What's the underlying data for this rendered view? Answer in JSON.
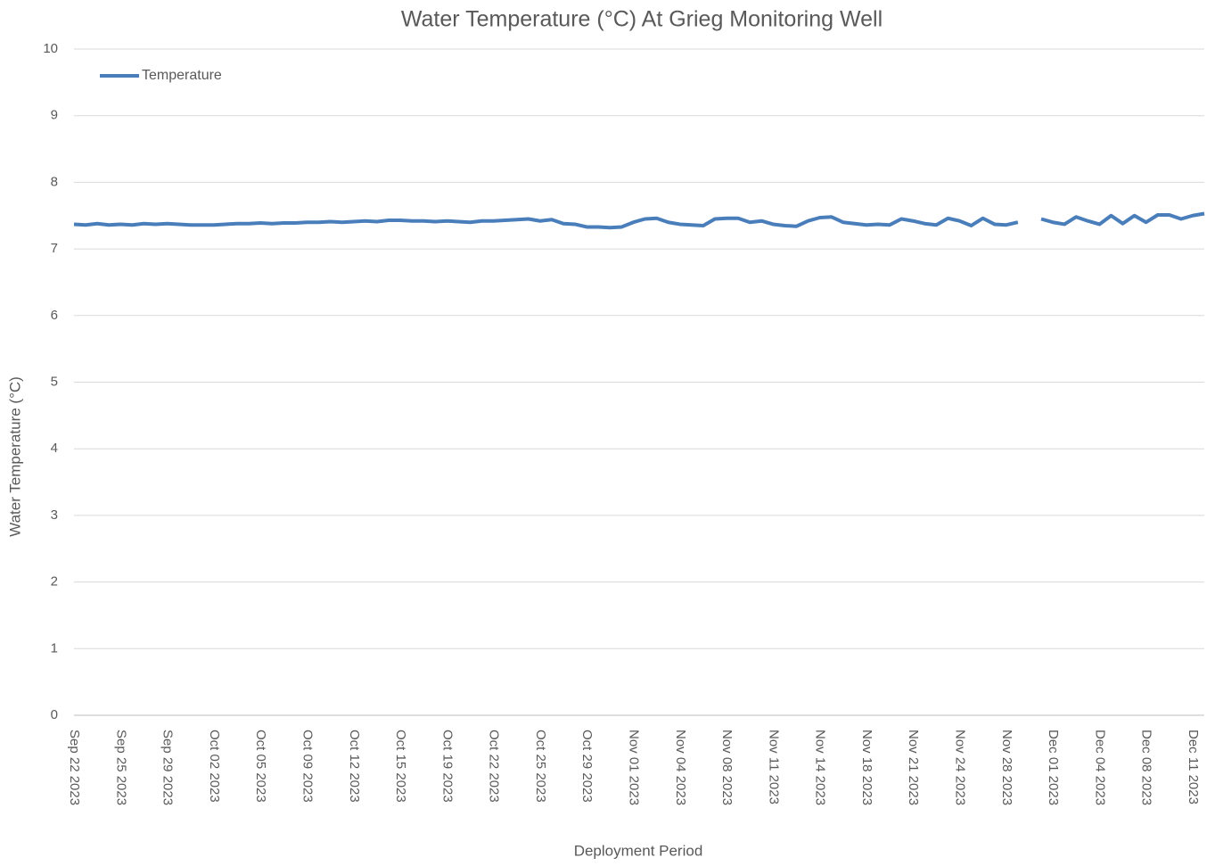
{
  "chart_data": {
    "type": "line",
    "title": "Water Temperature (°C) At Grieg Monitoring Well",
    "x_label": "Deployment Period",
    "y_label": "Water Temperature (°C)",
    "categories": [
      "Sep 22 2023",
      null,
      null,
      null,
      "Sep 25 2023",
      null,
      null,
      null,
      "Sep 29 2023",
      null,
      null,
      null,
      "Oct 02 2023",
      null,
      null,
      null,
      "Oct 05 2023",
      null,
      null,
      null,
      "Oct 09 2023",
      null,
      null,
      null,
      "Oct 12 2023",
      null,
      null,
      null,
      "Oct 15 2023",
      null,
      null,
      null,
      "Oct 19 2023",
      null,
      null,
      null,
      "Oct 22 2023",
      null,
      null,
      null,
      "Oct 25 2023",
      null,
      null,
      null,
      "Oct 29 2023",
      null,
      null,
      null,
      "Nov 01 2023",
      null,
      null,
      null,
      "Nov 04 2023",
      null,
      null,
      null,
      "Nov 08 2023",
      null,
      null,
      null,
      "Nov 11 2023",
      null,
      null,
      null,
      "Nov 14 2023",
      null,
      null,
      null,
      "Nov 18 2023",
      null,
      null,
      null,
      "Nov 21 2023",
      null,
      null,
      null,
      "Nov 24 2023",
      null,
      null,
      null,
      "Nov 28 2023",
      null,
      null,
      null,
      "Dec 01 2023",
      null,
      null,
      null,
      "Dec 04 2023",
      null,
      null,
      null,
      "Dec 08 2023",
      null,
      null,
      null,
      "Dec 11 2023",
      null
    ],
    "series": [
      {
        "name": "Temperature",
        "color": "#4a7ebb",
        "values": [
          7.37,
          7.36,
          7.38,
          7.36,
          7.37,
          7.36,
          7.38,
          7.37,
          7.38,
          7.37,
          7.36,
          7.36,
          7.36,
          7.37,
          7.38,
          7.38,
          7.39,
          7.38,
          7.39,
          7.39,
          7.4,
          7.4,
          7.41,
          7.4,
          7.41,
          7.42,
          7.41,
          7.43,
          7.43,
          7.42,
          7.42,
          7.41,
          7.42,
          7.41,
          7.4,
          7.42,
          7.42,
          7.43,
          7.44,
          7.45,
          7.42,
          7.44,
          7.38,
          7.37,
          7.33,
          7.33,
          7.32,
          7.33,
          7.4,
          7.45,
          7.46,
          7.4,
          7.37,
          7.36,
          7.35,
          7.45,
          7.46,
          7.46,
          7.4,
          7.42,
          7.37,
          7.35,
          7.34,
          7.42,
          7.47,
          7.48,
          7.4,
          7.38,
          7.36,
          7.37,
          7.36,
          7.45,
          7.42,
          7.38,
          7.36,
          7.46,
          7.42,
          7.35,
          7.46,
          7.37,
          7.36,
          7.4,
          null,
          7.45,
          7.4,
          7.37,
          7.48,
          7.42,
          7.37,
          7.5,
          7.38,
          7.5,
          7.4,
          7.51,
          7.51,
          7.45,
          7.5,
          7.53
        ]
      }
    ],
    "ylim": [
      0,
      10
    ],
    "yticks": [
      0,
      1,
      2,
      3,
      4,
      5,
      6,
      7,
      8,
      9,
      10
    ],
    "grid": true,
    "legend": "upper left"
  }
}
